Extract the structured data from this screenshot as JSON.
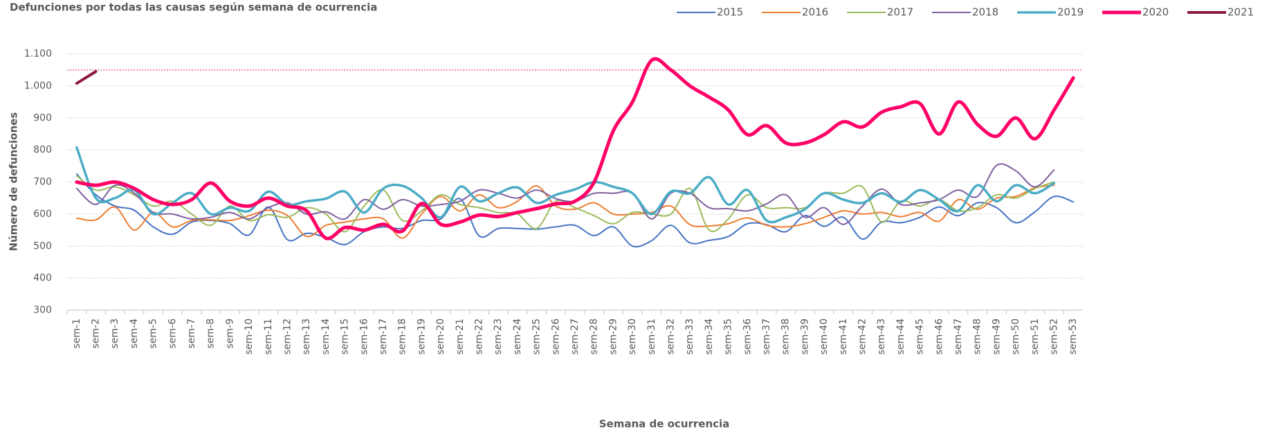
{
  "chart_data": {
    "type": "line",
    "title": "Defunciones por todas las causas según semana de ocurrencia",
    "x_label": "Semana de ocurrencia",
    "y_label": "Número de defunciones",
    "categories": [
      "sem-1",
      "sem-2",
      "sem-3",
      "sem-4",
      "sem-5",
      "sem-6",
      "sem-7",
      "sem-8",
      "sem-9",
      "sem-10",
      "sem-11",
      "sem-12",
      "sem-13",
      "sem-14",
      "sem-15",
      "sem-16",
      "sem-17",
      "sem-18",
      "sem-19",
      "sem-20",
      "sem-21",
      "sem-22",
      "sem-23",
      "sem-24",
      "sem-25",
      "sem-26",
      "sem-27",
      "sem-28",
      "sem-29",
      "sem-30",
      "sem-31",
      "sem-32",
      "sem-33",
      "sem-34",
      "sem-35",
      "sem-36",
      "sem-37",
      "sem-38",
      "sem-39",
      "sem-40",
      "sem-41",
      "sem-42",
      "sem-43",
      "sem-44",
      "sem-45",
      "sem-46",
      "sem-47",
      "sem-48",
      "sem-49",
      "sem-50",
      "sem-51",
      "sem-52",
      "sem-53"
    ],
    "ylim": [
      300,
      1100
    ],
    "yticks": [
      300,
      400,
      500,
      600,
      700,
      800,
      900,
      {
        "value": 1000,
        "label": "1.000"
      },
      {
        "value": 1100,
        "label": "1.100"
      }
    ],
    "grid": true,
    "legend": "top-right",
    "reference_line": {
      "value": 1050,
      "color": "#e8336b"
    },
    "series": [
      {
        "name": "2015",
        "color": "#4472c4",
        "line_width": 2,
        "values": [
          725,
          660,
          625,
          612,
          560,
          537,
          575,
          580,
          570,
          535,
          622,
          520,
          540,
          527,
          505,
          545,
          560,
          555,
          580,
          585,
          648,
          532,
          555,
          555,
          553,
          560,
          565,
          533,
          560,
          500,
          517,
          565,
          510,
          518,
          530,
          570,
          567,
          545,
          595,
          562,
          590,
          522,
          575,
          573,
          590,
          622,
          595,
          635,
          620,
          573,
          607,
          655,
          638
        ]
      },
      {
        "name": "2016",
        "color": "#ed7d31",
        "line_width": 2,
        "values": [
          587,
          582,
          622,
          550,
          605,
          560,
          580,
          582,
          580,
          595,
          612,
          595,
          530,
          565,
          575,
          585,
          585,
          525,
          600,
          655,
          610,
          660,
          620,
          640,
          688,
          625,
          615,
          635,
          600,
          600,
          605,
          625,
          567,
          563,
          570,
          588,
          565,
          560,
          570,
          590,
          610,
          600,
          605,
          592,
          605,
          578,
          645,
          615,
          650,
          655,
          682,
          690,
          null
        ]
      },
      {
        "name": "2017",
        "color": "#9bbb59",
        "line_width": 2,
        "values": [
          720,
          675,
          685,
          660,
          625,
          640,
          600,
          565,
          625,
          580,
          598,
          590,
          620,
          600,
          545,
          625,
          675,
          580,
          610,
          660,
          630,
          620,
          605,
          600,
          555,
          640,
          620,
          595,
          570,
          605,
          600,
          600,
          680,
          550,
          585,
          660,
          620,
          620,
          620,
          665,
          665,
          685,
          575,
          640,
          625,
          645,
          610,
          620,
          660,
          650,
          680,
          700,
          null
        ]
      },
      {
        "name": "2018",
        "color": "#7f5fa0",
        "line_width": 2,
        "values": [
          680,
          630,
          690,
          665,
          605,
          600,
          585,
          590,
          605,
          585,
          620,
          635,
          600,
          607,
          585,
          645,
          615,
          645,
          625,
          630,
          640,
          675,
          665,
          650,
          675,
          648,
          640,
          665,
          665,
          665,
          585,
          665,
          665,
          620,
          617,
          610,
          632,
          660,
          590,
          620,
          568,
          625,
          678,
          630,
          635,
          645,
          675,
          655,
          752,
          735,
          685,
          738,
          null
        ]
      },
      {
        "name": "2019",
        "color": "#4bacc6",
        "line_width": 3.5,
        "values": [
          808,
          650,
          650,
          675,
          600,
          635,
          665,
          600,
          620,
          610,
          670,
          630,
          640,
          648,
          670,
          605,
          680,
          688,
          650,
          590,
          685,
          640,
          665,
          683,
          635,
          660,
          677,
          700,
          685,
          665,
          600,
          670,
          665,
          715,
          630,
          675,
          580,
          590,
          615,
          665,
          645,
          635,
          665,
          638,
          675,
          645,
          610,
          690,
          640,
          690,
          665,
          697,
          null
        ]
      },
      {
        "name": "2020",
        "color": "#ff0066",
        "line_width": 5,
        "values": [
          700,
          690,
          700,
          680,
          645,
          630,
          645,
          697,
          640,
          625,
          650,
          625,
          610,
          525,
          558,
          550,
          568,
          547,
          633,
          568,
          575,
          597,
          592,
          605,
          617,
          632,
          640,
          700,
          860,
          950,
          1080,
          1050,
          1000,
          965,
          925,
          848,
          876,
          822,
          822,
          848,
          888,
          872,
          918,
          935,
          945,
          850,
          950,
          880,
          843,
          900,
          835,
          925,
          1025
        ]
      },
      {
        "name": "2021",
        "color": "#8b1a3c",
        "line_width": 4,
        "values": [
          1008,
          1045,
          null,
          null,
          null,
          null,
          null,
          null,
          null,
          null,
          null,
          null,
          null,
          null,
          null,
          null,
          null,
          null,
          null,
          null,
          null,
          null,
          null,
          null,
          null,
          null,
          null,
          null,
          null,
          null,
          null,
          null,
          null,
          null,
          null,
          null,
          null,
          null,
          null,
          null,
          null,
          null,
          null,
          null,
          null,
          null,
          null,
          null,
          null,
          null,
          null,
          null,
          null
        ]
      }
    ]
  }
}
